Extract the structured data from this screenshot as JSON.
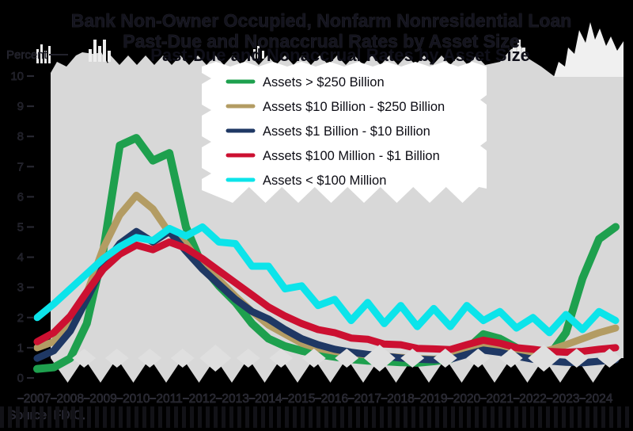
{
  "title": {
    "line1": "Bank Non-Owner Occupied, Nonfarm Nonresidential Loan",
    "line2": "Past-Due and Nonaccrual Rates by Asset Size"
  },
  "source": "Source: FDIC.",
  "axes": {
    "y_label": "Percent",
    "y_ticks": [
      10,
      9,
      8,
      7,
      6,
      5,
      4,
      3,
      2,
      1,
      0
    ],
    "x_ticks": [
      "2007",
      "2008",
      "2009",
      "2010",
      "2011",
      "2012",
      "2013",
      "2014",
      "2015",
      "2016",
      "2017",
      "2018",
      "2019",
      "2020",
      "2021",
      "2022",
      "2023",
      "2024"
    ]
  },
  "colors": {
    "background": "#000000",
    "plot_panel": "#d8d8d8",
    "legend_box": "#ffffff",
    "glitch_diamond": "#dfdfdf",
    "stripe": "#121217"
  },
  "chart_data": {
    "type": "line",
    "title": "Bank Non-Owner Occupied, Nonfarm Nonresidential Loan Past-Due and Nonaccrual Rates by Asset Size",
    "xlabel": "",
    "ylabel": "Percent",
    "ylim": [
      0,
      10
    ],
    "xlim": [
      2007,
      2024.75
    ],
    "grid": false,
    "legend_position": "upper center",
    "x_start": 2007.0,
    "x_step": 0.5,
    "series": [
      {
        "name": "Assets > $250 Billion",
        "color": "#1ea04e",
        "values": [
          0.3,
          0.35,
          0.65,
          1.8,
          4.2,
          7.7,
          7.95,
          7.2,
          7.45,
          5.0,
          3.7,
          3.05,
          2.5,
          1.8,
          1.3,
          1.05,
          0.9,
          0.78,
          0.7,
          0.62,
          0.57,
          0.55,
          0.52,
          0.5,
          0.55,
          0.62,
          0.95,
          1.45,
          1.3,
          1.0,
          0.8,
          0.75,
          1.5,
          3.3,
          4.6,
          5.0
        ]
      },
      {
        "name": "Assets  $10 Billion - $250 Billion",
        "color": "#b39c63",
        "values": [
          1.0,
          1.2,
          1.85,
          2.8,
          4.3,
          5.4,
          6.05,
          5.6,
          4.8,
          4.45,
          3.7,
          3.25,
          2.7,
          2.2,
          1.75,
          1.45,
          1.15,
          0.98,
          0.88,
          0.82,
          0.76,
          0.72,
          0.68,
          0.64,
          0.62,
          0.66,
          0.95,
          1.15,
          1.05,
          0.95,
          0.85,
          0.92,
          1.1,
          1.3,
          1.5,
          1.65
        ]
      },
      {
        "name": "Assets  $1 Billion - $10 Billion",
        "color": "#1f3864",
        "values": [
          0.65,
          0.9,
          1.55,
          2.6,
          3.7,
          4.45,
          4.85,
          4.5,
          4.85,
          4.2,
          3.6,
          3.1,
          2.6,
          2.2,
          1.95,
          1.6,
          1.3,
          1.1,
          0.95,
          0.85,
          0.78,
          0.72,
          0.66,
          0.62,
          0.6,
          0.62,
          0.78,
          0.92,
          0.85,
          0.72,
          0.62,
          0.56,
          0.52,
          0.5,
          0.55,
          0.6
        ]
      },
      {
        "name": "Assets  $100 Million - $1 Billion",
        "color": "#cc1031",
        "values": [
          1.2,
          1.5,
          2.05,
          2.85,
          3.6,
          4.1,
          4.4,
          4.25,
          4.5,
          4.3,
          3.95,
          3.55,
          3.15,
          2.75,
          2.35,
          2.05,
          1.8,
          1.6,
          1.5,
          1.32,
          1.28,
          1.12,
          1.1,
          0.98,
          0.96,
          0.94,
          1.1,
          1.25,
          1.15,
          1.0,
          0.95,
          0.88,
          0.85,
          0.88,
          0.95,
          1.0
        ]
      },
      {
        "name": "Assets < $100 Million",
        "color": "#0ce4ea",
        "values": [
          2.0,
          2.45,
          2.95,
          3.45,
          3.95,
          4.35,
          4.65,
          4.55,
          4.95,
          4.7,
          5.0,
          4.5,
          4.45,
          3.7,
          3.7,
          2.95,
          3.05,
          2.4,
          2.6,
          1.9,
          2.5,
          1.8,
          2.4,
          1.7,
          2.3,
          1.7,
          2.4,
          1.9,
          2.2,
          1.65,
          2.0,
          1.5,
          2.1,
          1.6,
          2.2,
          1.9
        ]
      }
    ]
  }
}
